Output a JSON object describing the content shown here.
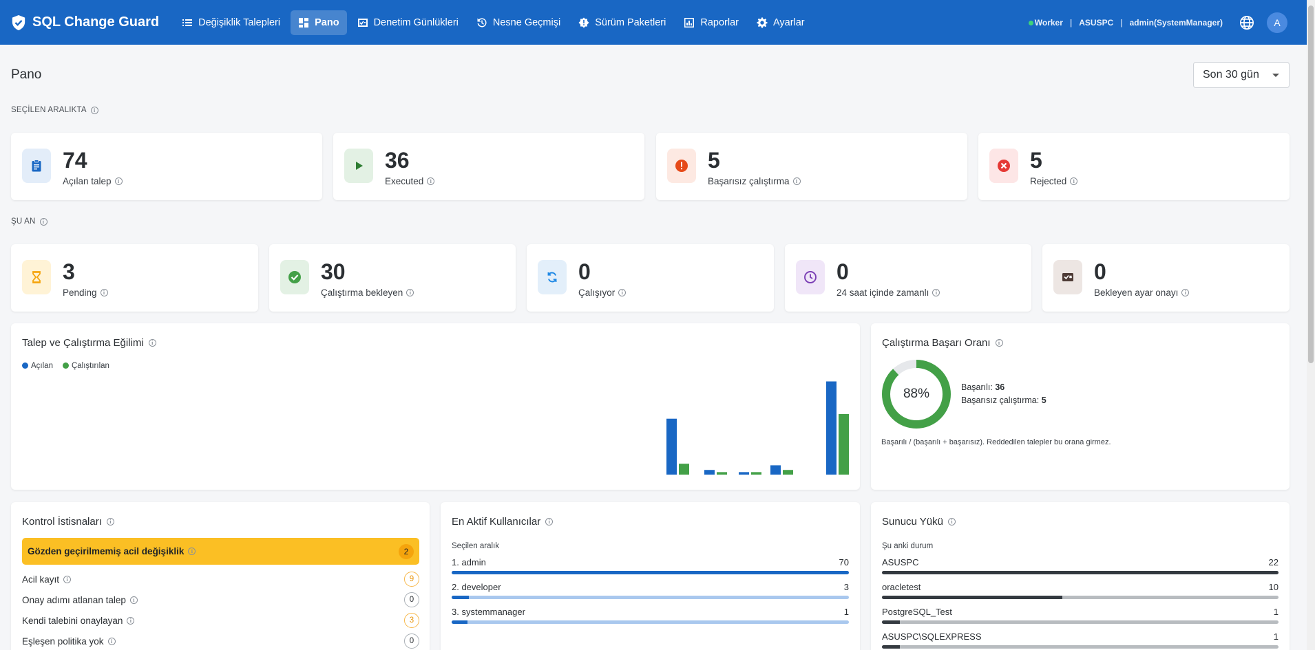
{
  "app": {
    "title": "SQL Change Guard"
  },
  "nav": [
    {
      "label": "Değişiklik Talepleri",
      "icon": "list-icon",
      "active": false
    },
    {
      "label": "Pano",
      "icon": "dashboard-icon",
      "active": true
    },
    {
      "label": "Denetim Günlükleri",
      "icon": "audit-icon",
      "active": false
    },
    {
      "label": "Nesne Geçmişi",
      "icon": "history-icon",
      "active": false
    },
    {
      "label": "Sürüm Paketleri",
      "icon": "package-icon",
      "active": false
    },
    {
      "label": "Raporlar",
      "icon": "report-icon",
      "active": false
    },
    {
      "label": "Ayarlar",
      "icon": "gear-icon",
      "active": false
    }
  ],
  "status": {
    "worker": "Worker",
    "host": "ASUSPC",
    "user": "admin(SystemManager)",
    "avatar": "A"
  },
  "page": {
    "title": "Pano",
    "range": "Son 30 gün"
  },
  "sections": {
    "selected": "SEÇİLEN ARALIKTA",
    "now": "ŞU AN"
  },
  "stats_range": [
    {
      "value": "74",
      "label": "Açılan talep",
      "icon": "clipboard-icon",
      "color": "#1967c4",
      "bg": "#e3edf9"
    },
    {
      "value": "36",
      "label": "Executed",
      "icon": "play-icon",
      "color": "#2e7d32",
      "bg": "#e3f1e4"
    },
    {
      "value": "5",
      "label": "Başarısız çalıştırma",
      "icon": "alert-icon",
      "color": "#e64a19",
      "bg": "#fde9e2"
    },
    {
      "value": "5",
      "label": "Rejected",
      "icon": "cancel-icon",
      "color": "#e53935",
      "bg": "#fde6e6"
    }
  ],
  "stats_now": [
    {
      "value": "3",
      "label": "Pending",
      "icon": "hourglass-icon",
      "color": "#f5a40c",
      "bg": "#fff3d6"
    },
    {
      "value": "30",
      "label": "Çalıştırma bekleyen",
      "icon": "check-circle-icon",
      "color": "#43a047",
      "bg": "#e3f1e4"
    },
    {
      "value": "0",
      "label": "Çalışıyor",
      "icon": "sync-icon",
      "color": "#1e88e5",
      "bg": "#e3effa"
    },
    {
      "value": "0",
      "label": "24 saat içinde zamanlı",
      "icon": "clock-icon",
      "color": "#7b3fb5",
      "bg": "#f0e6f8"
    },
    {
      "value": "0",
      "label": "Bekleyen ayar onayı",
      "icon": "pending-settings-icon",
      "color": "#4e3b36",
      "bg": "#ede6e3"
    }
  ],
  "trend": {
    "title": "Talep ve Çalıştırma Eğilimi",
    "legend": {
      "opened": "Açılan",
      "executed": "Çalıştırılan"
    },
    "colors": {
      "opened": "#1967c4",
      "executed": "#43a047"
    }
  },
  "chart_data": {
    "type": "bar",
    "series": [
      {
        "name": "Açılan",
        "values": [
          18,
          1.5,
          0.8,
          3,
          30
        ]
      },
      {
        "name": "Çalıştırılan",
        "values": [
          3.5,
          0.8,
          0.8,
          1.5,
          19.5
        ]
      }
    ],
    "categories": [
      "",
      "",
      "",
      "",
      ""
    ],
    "ylim": [
      0,
      31
    ],
    "grid": false,
    "legend": "top-left"
  },
  "success": {
    "title": "Çalıştırma Başarı Oranı",
    "rate": 88,
    "rate_text": "88%",
    "ok_label": "Başarılı:",
    "ok_value": "36",
    "fail_label": "Başarısız çalıştırma:",
    "fail_value": "5",
    "note": "Başarılı / (başarılı + başarısız). Reddedilen talepler bu orana girmez.",
    "color": "#43a047"
  },
  "exceptions": {
    "title": "Kontrol İstisnaları",
    "highlight": {
      "label": "Gözden geçirilmemiş acil değişiklik",
      "count": "2"
    },
    "items": [
      {
        "label": "Acil kayıt",
        "count": "9",
        "warn": true
      },
      {
        "label": "Onay adımı atlanan talep",
        "count": "0",
        "warn": false
      },
      {
        "label": "Kendi talebini onaylayan",
        "count": "3",
        "warn": true
      },
      {
        "label": "Eşleşen politika yok",
        "count": "0",
        "warn": false
      }
    ]
  },
  "users": {
    "title": "En Aktif Kullanıcılar",
    "subtitle": "Seçilen aralık",
    "max": 70,
    "items": [
      {
        "label": "1. admin",
        "value": 70
      },
      {
        "label": "2. developer",
        "value": 3
      },
      {
        "label": "3. systemmanager",
        "value": 1
      }
    ]
  },
  "servers": {
    "title": "Sunucu Yükü",
    "subtitle": "Şu anki durum",
    "max": 22,
    "items": [
      {
        "label": "ASUSPC",
        "value": 22
      },
      {
        "label": "oracletest",
        "value": 10
      },
      {
        "label": "PostgreSQL_Test",
        "value": 1
      },
      {
        "label": "ASUSPC\\SQLEXPRESS",
        "value": 1
      }
    ]
  }
}
